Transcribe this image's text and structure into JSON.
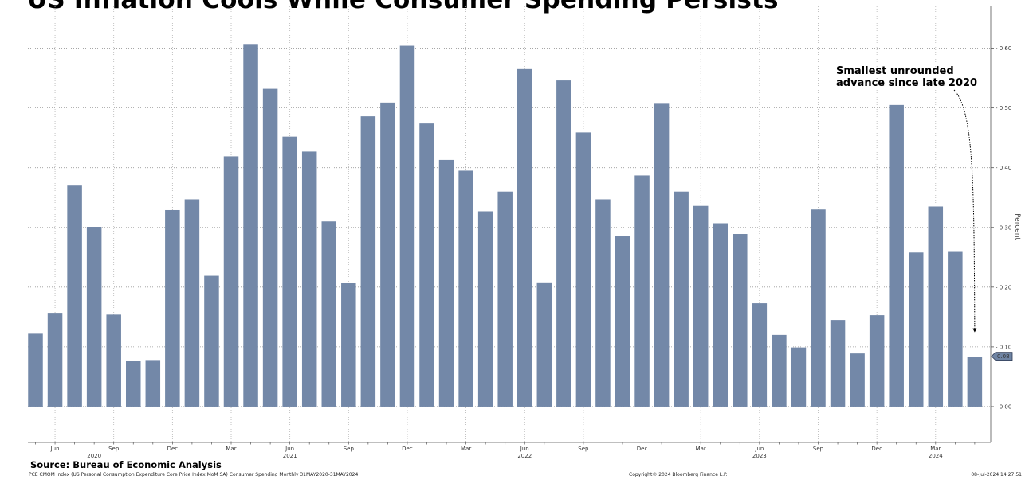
{
  "chart_data": {
    "type": "bar",
    "title": "US Inflation Cools While Consumer Spending Persists",
    "ylabel": "Percent",
    "ylim": [
      -0.06,
      0.67
    ],
    "yticks": [
      0.0,
      0.1,
      0.2,
      0.3,
      0.4,
      0.5,
      0.6
    ],
    "ytick_labels": [
      "0.00",
      "0.10",
      "0.20",
      "0.30",
      "0.40",
      "0.50",
      "0.60"
    ],
    "categories": [
      "May 2020",
      "Jun 2020",
      "Jul 2020",
      "Aug 2020",
      "Sep 2020",
      "Oct 2020",
      "Nov 2020",
      "Dec 2020",
      "Jan 2021",
      "Feb 2021",
      "Mar 2021",
      "Apr 2021",
      "May 2021",
      "Jun 2021",
      "Jul 2021",
      "Aug 2021",
      "Sep 2021",
      "Oct 2021",
      "Nov 2021",
      "Dec 2021",
      "Jan 2022",
      "Feb 2022",
      "Mar 2022",
      "Apr 2022",
      "May 2022",
      "Jun 2022",
      "Jul 2022",
      "Aug 2022",
      "Sep 2022",
      "Oct 2022",
      "Nov 2022",
      "Dec 2022",
      "Jan 2023",
      "Feb 2023",
      "Mar 2023",
      "Apr 2023",
      "May 2023",
      "Jun 2023",
      "Jul 2023",
      "Aug 2023",
      "Sep 2023",
      "Oct 2023",
      "Nov 2023",
      "Dec 2023",
      "Jan 2024",
      "Feb 2024",
      "Mar 2024",
      "Apr 2024",
      "May 2024"
    ],
    "values": [
      0.122,
      0.157,
      0.37,
      0.301,
      0.154,
      0.077,
      0.078,
      0.329,
      0.347,
      0.219,
      0.419,
      0.607,
      0.532,
      0.452,
      0.427,
      0.31,
      0.207,
      0.486,
      0.509,
      0.604,
      0.474,
      0.413,
      0.395,
      0.327,
      0.36,
      0.565,
      0.208,
      0.546,
      0.459,
      0.347,
      0.285,
      0.387,
      0.507,
      0.36,
      0.336,
      0.307,
      0.289,
      0.173,
      0.12,
      0.099,
      0.33,
      0.145,
      0.089,
      0.153,
      0.505,
      0.258,
      0.335,
      0.259,
      0.083
    ],
    "month_ticks": [
      {
        "label": "Jun",
        "index": 1
      },
      {
        "label": "Sep",
        "index": 4
      },
      {
        "label": "Dec",
        "index": 7
      },
      {
        "label": "Mar",
        "index": 10
      },
      {
        "label": "Jun",
        "index": 13
      },
      {
        "label": "Sep",
        "index": 16
      },
      {
        "label": "Dec",
        "index": 19
      },
      {
        "label": "Mar",
        "index": 22
      },
      {
        "label": "Jun",
        "index": 25
      },
      {
        "label": "Sep",
        "index": 28
      },
      {
        "label": "Dec",
        "index": 31
      },
      {
        "label": "Mar",
        "index": 34
      },
      {
        "label": "Jun",
        "index": 37
      },
      {
        "label": "Sep",
        "index": 40
      },
      {
        "label": "Dec",
        "index": 43
      },
      {
        "label": "Mar",
        "index": 46
      }
    ],
    "year_labels": [
      {
        "label": "2020",
        "index": 3
      },
      {
        "label": "2021",
        "index": 13
      },
      {
        "label": "2022",
        "index": 25
      },
      {
        "label": "2023",
        "index": 37
      },
      {
        "label": "2024",
        "index": 46
      }
    ],
    "last_value_label": "0.08",
    "annotation": {
      "lines": [
        "Smallest unrounded",
        "advance since late 2020"
      ],
      "target_index": 48
    },
    "grid": true,
    "colors": {
      "bar": "#7388a8",
      "last_tag": "#6f84a3"
    }
  },
  "source": "Source: Bureau of Economic Analysis",
  "footnote": "PCE CMOM Index (US Personal Consumption Expenditure Core Price Index MoM SA) Consumer Spending  Monthly 31MAY2020-31MAY2024",
  "copyright": "Copyright© 2024 Bloomberg Finance L.P.",
  "timestamp": "08-Jul-2024 14:27:51"
}
